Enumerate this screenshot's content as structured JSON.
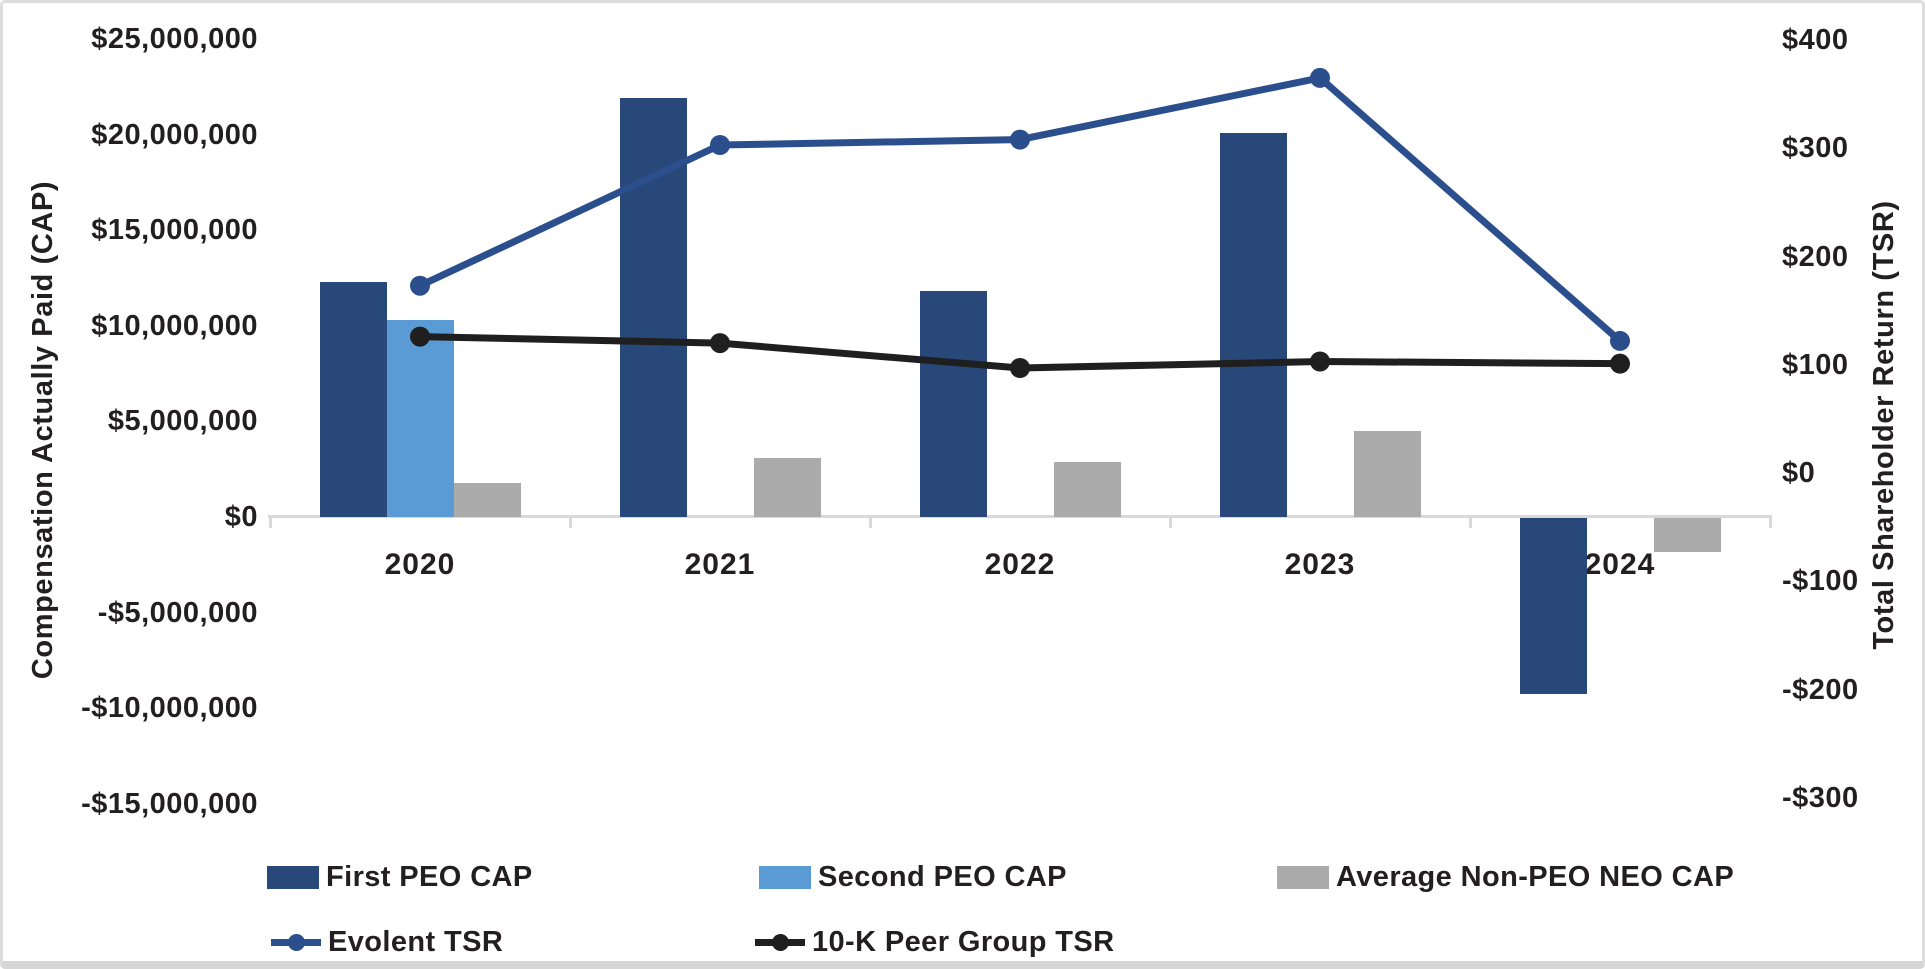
{
  "chart_data": {
    "type": "combo-bar-line",
    "title": "",
    "categories": [
      "2020",
      "2021",
      "2022",
      "2023",
      "2024"
    ],
    "bar_series": [
      {
        "name": "First PEO CAP",
        "axis": "left",
        "color": "#28487a",
        "values": [
          12300000,
          21900000,
          11800000,
          20100000,
          -9200000
        ]
      },
      {
        "name": "Second PEO CAP",
        "axis": "left",
        "color": "#5b9bd5",
        "values": [
          10300000,
          null,
          null,
          null,
          null
        ]
      },
      {
        "name": "Average Non-PEO NEO CAP",
        "axis": "left",
        "color": "#ababab",
        "values": [
          1800000,
          3100000,
          2900000,
          4500000,
          -1800000
        ]
      }
    ],
    "line_series": [
      {
        "name": "Evolent TSR",
        "axis": "right",
        "color": "#2b4f8d",
        "values": [
          173,
          303,
          308,
          365,
          122
        ]
      },
      {
        "name": "10-K Peer Group TSR",
        "axis": "right",
        "color": "#1f1f1f",
        "values": [
          126,
          120,
          97,
          103,
          101
        ]
      }
    ],
    "left_axis": {
      "title": "Compensation Actually Paid (CAP)",
      "min": -15000000,
      "max": 25000000,
      "step": 5000000,
      "tick_labels": [
        "$25,000,000",
        "$20,000,000",
        "$15,000,000",
        "$10,000,000",
        "$5,000,000",
        "$0",
        "-$5,000,000",
        "-$10,000,000",
        "-$15,000,000"
      ]
    },
    "right_axis": {
      "title": "Total Shareholder Return (TSR)",
      "min": -300,
      "max": 400,
      "step": 100,
      "tick_labels": [
        "$400",
        "$300",
        "$200",
        "$100",
        "$0",
        "-$100",
        "-$200",
        "-$300"
      ]
    },
    "grid": false,
    "legend_position": "bottom",
    "axis_line_color": "#d9d9d9",
    "text_color": "#231f20"
  },
  "legend": {
    "items": [
      {
        "label": "First PEO CAP",
        "marker": "swatch",
        "color": "#28487a"
      },
      {
        "label": "Second PEO CAP",
        "marker": "swatch",
        "color": "#5b9bd5"
      },
      {
        "label": "Average Non-PEO NEO CAP",
        "marker": "swatch",
        "color": "#ababab"
      },
      {
        "label": "Evolent TSR",
        "marker": "line-dot",
        "color": "#2b4f8d"
      },
      {
        "label": "10-K Peer Group TSR",
        "marker": "line-dot",
        "color": "#1f1f1f"
      }
    ]
  }
}
